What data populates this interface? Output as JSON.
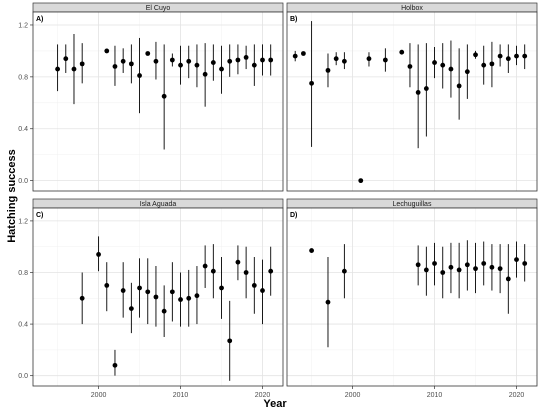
{
  "chart_data": {
    "type": "scatter",
    "subtype": "point-range faceted",
    "xlabel": "Year",
    "ylabel": "Hatching success",
    "xlim": [
      1992,
      2022.5
    ],
    "ylim": [
      -0.08,
      1.3
    ],
    "x_ticks": [
      2000,
      2010,
      2020
    ],
    "y_ticks": [
      0.0,
      0.4,
      0.8,
      1.2
    ],
    "y_tick_labels": [
      "0.0",
      "0.4",
      "0.8",
      "1.2"
    ],
    "grid": true,
    "legend": "none",
    "panels": [
      {
        "tag": "A)",
        "title": "El Cuyo",
        "points": [
          {
            "x": 1995,
            "y": 0.86,
            "lo": 0.69,
            "hi": 1.05
          },
          {
            "x": 1996,
            "y": 0.94,
            "lo": 0.83,
            "hi": 1.05
          },
          {
            "x": 1997,
            "y": 0.86,
            "lo": 0.59,
            "hi": 1.13
          },
          {
            "x": 1998,
            "y": 0.9,
            "lo": 0.75,
            "hi": 1.06
          },
          {
            "x": 2001,
            "y": 1.0,
            "lo": 1.0,
            "hi": 1.0
          },
          {
            "x": 2002,
            "y": 0.88,
            "lo": 0.73,
            "hi": 1.04
          },
          {
            "x": 2003,
            "y": 0.92,
            "lo": 0.83,
            "hi": 1.02
          },
          {
            "x": 2004,
            "y": 0.9,
            "lo": 0.75,
            "hi": 1.05
          },
          {
            "x": 2005,
            "y": 0.81,
            "lo": 0.52,
            "hi": 1.1
          },
          {
            "x": 2006,
            "y": 0.98,
            "lo": 0.98,
            "hi": 0.98
          },
          {
            "x": 2007,
            "y": 0.92,
            "lo": 0.78,
            "hi": 1.07
          },
          {
            "x": 2008,
            "y": 0.65,
            "lo": 0.24,
            "hi": 1.05
          },
          {
            "x": 2009,
            "y": 0.93,
            "lo": 0.88,
            "hi": 0.98
          },
          {
            "x": 2010,
            "y": 0.89,
            "lo": 0.74,
            "hi": 1.04
          },
          {
            "x": 2011,
            "y": 0.92,
            "lo": 0.79,
            "hi": 1.04
          },
          {
            "x": 2012,
            "y": 0.89,
            "lo": 0.72,
            "hi": 1.05
          },
          {
            "x": 2013,
            "y": 0.82,
            "lo": 0.57,
            "hi": 1.06
          },
          {
            "x": 2014,
            "y": 0.91,
            "lo": 0.77,
            "hi": 1.05
          },
          {
            "x": 2015,
            "y": 0.86,
            "lo": 0.67,
            "hi": 1.04
          },
          {
            "x": 2016,
            "y": 0.92,
            "lo": 0.8,
            "hi": 1.05
          },
          {
            "x": 2017,
            "y": 0.93,
            "lo": 0.82,
            "hi": 1.05
          },
          {
            "x": 2018,
            "y": 0.95,
            "lo": 0.86,
            "hi": 1.04
          },
          {
            "x": 2019,
            "y": 0.89,
            "lo": 0.73,
            "hi": 1.05
          },
          {
            "x": 2020,
            "y": 0.93,
            "lo": 0.81,
            "hi": 1.05
          },
          {
            "x": 2021,
            "y": 0.93,
            "lo": 0.81,
            "hi": 1.05
          }
        ]
      },
      {
        "tag": "B)",
        "title": "Holbox",
        "points": [
          {
            "x": 1993,
            "y": 0.96,
            "lo": 0.92,
            "hi": 1.0
          },
          {
            "x": 1994,
            "y": 0.98,
            "lo": 0.98,
            "hi": 0.98
          },
          {
            "x": 1995,
            "y": 0.75,
            "lo": 0.26,
            "hi": 1.23
          },
          {
            "x": 1997,
            "y": 0.85,
            "lo": 0.72,
            "hi": 0.98
          },
          {
            "x": 1998,
            "y": 0.94,
            "lo": 0.89,
            "hi": 0.99
          },
          {
            "x": 1999,
            "y": 0.92,
            "lo": 0.86,
            "hi": 0.99
          },
          {
            "x": 2001,
            "y": 0.0,
            "lo": 0.0,
            "hi": 0.0
          },
          {
            "x": 2002,
            "y": 0.94,
            "lo": 0.88,
            "hi": 0.99
          },
          {
            "x": 2004,
            "y": 0.93,
            "lo": 0.84,
            "hi": 1.02
          },
          {
            "x": 2006,
            "y": 0.99,
            "lo": 0.99,
            "hi": 0.99
          },
          {
            "x": 2007,
            "y": 0.88,
            "lo": 0.72,
            "hi": 1.06
          },
          {
            "x": 2008,
            "y": 0.68,
            "lo": 0.25,
            "hi": 1.05
          },
          {
            "x": 2009,
            "y": 0.71,
            "lo": 0.34,
            "hi": 1.06
          },
          {
            "x": 2010,
            "y": 0.91,
            "lo": 0.79,
            "hi": 1.03
          },
          {
            "x": 2011,
            "y": 0.89,
            "lo": 0.71,
            "hi": 1.06
          },
          {
            "x": 2012,
            "y": 0.86,
            "lo": 0.64,
            "hi": 1.08
          },
          {
            "x": 2013,
            "y": 0.73,
            "lo": 0.47,
            "hi": 1.02
          },
          {
            "x": 2014,
            "y": 0.84,
            "lo": 0.63,
            "hi": 1.05
          },
          {
            "x": 2015,
            "y": 0.97,
            "lo": 0.94,
            "hi": 1.0
          },
          {
            "x": 2016,
            "y": 0.89,
            "lo": 0.74,
            "hi": 1.04
          },
          {
            "x": 2017,
            "y": 0.9,
            "lo": 0.72,
            "hi": 1.07
          },
          {
            "x": 2018,
            "y": 0.96,
            "lo": 0.88,
            "hi": 1.05
          },
          {
            "x": 2019,
            "y": 0.94,
            "lo": 0.83,
            "hi": 1.05
          },
          {
            "x": 2020,
            "y": 0.96,
            "lo": 0.89,
            "hi": 1.04
          },
          {
            "x": 2021,
            "y": 0.96,
            "lo": 0.86,
            "hi": 1.05
          }
        ]
      },
      {
        "tag": "C)",
        "title": "Isla Aguada",
        "points": [
          {
            "x": 1998,
            "y": 0.6,
            "lo": 0.4,
            "hi": 0.8
          },
          {
            "x": 2000,
            "y": 0.94,
            "lo": 0.81,
            "hi": 1.08
          },
          {
            "x": 2001,
            "y": 0.7,
            "lo": 0.5,
            "hi": 0.88
          },
          {
            "x": 2002,
            "y": 0.08,
            "lo": 0.0,
            "hi": 0.2
          },
          {
            "x": 2003,
            "y": 0.66,
            "lo": 0.45,
            "hi": 0.88
          },
          {
            "x": 2004,
            "y": 0.52,
            "lo": 0.33,
            "hi": 0.72
          },
          {
            "x": 2005,
            "y": 0.68,
            "lo": 0.45,
            "hi": 0.91
          },
          {
            "x": 2006,
            "y": 0.65,
            "lo": 0.4,
            "hi": 0.91
          },
          {
            "x": 2007,
            "y": 0.61,
            "lo": 0.38,
            "hi": 0.85
          },
          {
            "x": 2008,
            "y": 0.5,
            "lo": 0.3,
            "hi": 0.7
          },
          {
            "x": 2009,
            "y": 0.65,
            "lo": 0.42,
            "hi": 0.88
          },
          {
            "x": 2010,
            "y": 0.59,
            "lo": 0.38,
            "hi": 0.8
          },
          {
            "x": 2011,
            "y": 0.6,
            "lo": 0.38,
            "hi": 0.82
          },
          {
            "x": 2012,
            "y": 0.62,
            "lo": 0.4,
            "hi": 0.85
          },
          {
            "x": 2013,
            "y": 0.85,
            "lo": 0.68,
            "hi": 1.01
          },
          {
            "x": 2014,
            "y": 0.81,
            "lo": 0.6,
            "hi": 1.02
          },
          {
            "x": 2015,
            "y": 0.68,
            "lo": 0.44,
            "hi": 0.92
          },
          {
            "x": 2016,
            "y": 0.27,
            "lo": -0.04,
            "hi": 0.58
          },
          {
            "x": 2017,
            "y": 0.88,
            "lo": 0.74,
            "hi": 1.01
          },
          {
            "x": 2018,
            "y": 0.8,
            "lo": 0.6,
            "hi": 1.0
          },
          {
            "x": 2019,
            "y": 0.7,
            "lo": 0.48,
            "hi": 0.92
          },
          {
            "x": 2020,
            "y": 0.66,
            "lo": 0.4,
            "hi": 0.9
          },
          {
            "x": 2021,
            "y": 0.81,
            "lo": 0.62,
            "hi": 1.0
          }
        ]
      },
      {
        "tag": "D)",
        "title": "Lechuguillas",
        "points": [
          {
            "x": 1995,
            "y": 0.97,
            "lo": 0.97,
            "hi": 0.97
          },
          {
            "x": 1997,
            "y": 0.57,
            "lo": 0.22,
            "hi": 0.92
          },
          {
            "x": 1999,
            "y": 0.81,
            "lo": 0.6,
            "hi": 1.02
          },
          {
            "x": 2008,
            "y": 0.86,
            "lo": 0.7,
            "hi": 1.01
          },
          {
            "x": 2009,
            "y": 0.82,
            "lo": 0.62,
            "hi": 1.0
          },
          {
            "x": 2010,
            "y": 0.87,
            "lo": 0.7,
            "hi": 1.03
          },
          {
            "x": 2011,
            "y": 0.8,
            "lo": 0.6,
            "hi": 1.0
          },
          {
            "x": 2012,
            "y": 0.84,
            "lo": 0.64,
            "hi": 1.03
          },
          {
            "x": 2013,
            "y": 0.82,
            "lo": 0.6,
            "hi": 1.03
          },
          {
            "x": 2014,
            "y": 0.86,
            "lo": 0.66,
            "hi": 1.05
          },
          {
            "x": 2015,
            "y": 0.83,
            "lo": 0.64,
            "hi": 1.03
          },
          {
            "x": 2016,
            "y": 0.87,
            "lo": 0.7,
            "hi": 1.04
          },
          {
            "x": 2017,
            "y": 0.84,
            "lo": 0.66,
            "hi": 1.02
          },
          {
            "x": 2018,
            "y": 0.83,
            "lo": 0.64,
            "hi": 1.02
          },
          {
            "x": 2019,
            "y": 0.75,
            "lo": 0.48,
            "hi": 1.02
          },
          {
            "x": 2020,
            "y": 0.9,
            "lo": 0.76,
            "hi": 1.04
          },
          {
            "x": 2021,
            "y": 0.87,
            "lo": 0.73,
            "hi": 1.02
          }
        ]
      }
    ]
  }
}
